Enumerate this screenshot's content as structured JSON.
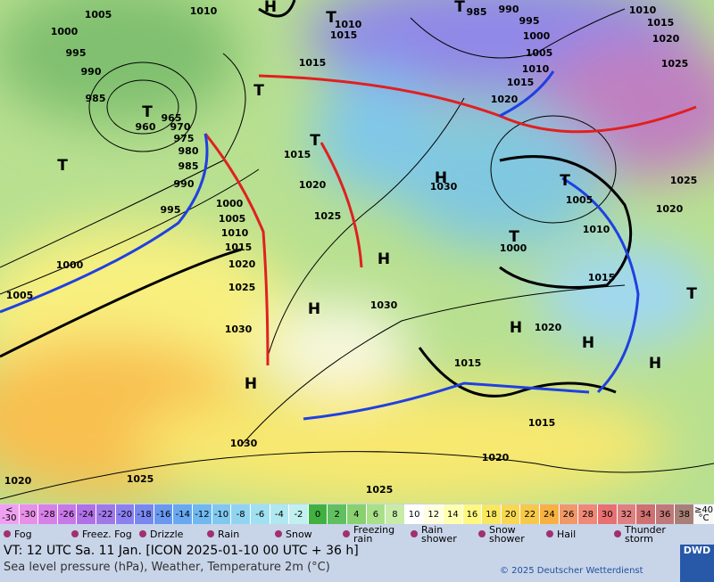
{
  "map": {
    "isobar_labels": [
      1005,
      1010,
      1000,
      995,
      990,
      985,
      965,
      960,
      970,
      975,
      980,
      985,
      990,
      995,
      1000,
      1005,
      1010,
      1015,
      1020,
      1025,
      1030,
      1015,
      1020,
      1025,
      1015,
      1015,
      1010,
      985,
      990,
      995,
      1000,
      1005,
      1010,
      1015,
      1020,
      1010,
      1015,
      1020,
      1025,
      1030,
      1005,
      1010,
      1000,
      1015,
      1020,
      1015,
      1015,
      1025,
      1020,
      1030,
      1000,
      1005,
      1030,
      1020,
      1020,
      1025,
      1025
    ],
    "centers": [
      "T",
      "T",
      "T",
      "T",
      "T",
      "T",
      "T",
      "T",
      "T",
      "H",
      "H",
      "H",
      "H",
      "H",
      "H",
      "H",
      "H"
    ]
  },
  "legend": {
    "scale_low": [
      "<",
      "-30"
    ],
    "scale": [
      {
        "value": -30,
        "color": "#e890e8"
      },
      {
        "value": -28,
        "color": "#d880e8"
      },
      {
        "value": -26,
        "color": "#c878e8"
      },
      {
        "value": -24,
        "color": "#b070e8"
      },
      {
        "value": -22,
        "color": "#a078e8"
      },
      {
        "value": -20,
        "color": "#8c80f0"
      },
      {
        "value": -18,
        "color": "#7888f0"
      },
      {
        "value": -16,
        "color": "#6898f0"
      },
      {
        "value": -14,
        "color": "#68a8f0"
      },
      {
        "value": -12,
        "color": "#70b8f0"
      },
      {
        "value": -10,
        "color": "#80c8f0"
      },
      {
        "value": -8,
        "color": "#90d4f0"
      },
      {
        "value": -6,
        "color": "#a0e0f0"
      },
      {
        "value": -4,
        "color": "#b0e8f0"
      },
      {
        "value": -2,
        "color": "#c0f0f0"
      },
      {
        "value": 0,
        "color": "#40b040"
      },
      {
        "value": 2,
        "color": "#60c060"
      },
      {
        "value": 4,
        "color": "#88d070"
      },
      {
        "value": 6,
        "color": "#a8e088"
      },
      {
        "value": 8,
        "color": "#c8eca8"
      },
      {
        "value": 10,
        "color": "#ffffff"
      },
      {
        "value": 12,
        "color": "#ffffe0"
      },
      {
        "value": 14,
        "color": "#ffffb0"
      },
      {
        "value": 16,
        "color": "#fff880"
      },
      {
        "value": 18,
        "color": "#f8e860"
      },
      {
        "value": 20,
        "color": "#f8d850"
      },
      {
        "value": 22,
        "color": "#f8c848"
      },
      {
        "value": 24,
        "color": "#f8b040"
      },
      {
        "value": 26,
        "color": "#f09868"
      },
      {
        "value": 28,
        "color": "#f08878"
      },
      {
        "value": 30,
        "color": "#e87070"
      },
      {
        "value": 32,
        "color": "#e08080"
      },
      {
        "value": 34,
        "color": "#d07070"
      },
      {
        "value": 36,
        "color": "#c07878"
      },
      {
        "value": 38,
        "color": "#a88078"
      }
    ],
    "scale_high": [
      "≥40",
      "°C"
    ],
    "weather": [
      "Fog",
      "Freez. Fog",
      "Drizzle",
      "Rain",
      "Snow",
      "Freezing rain",
      "Rain shower",
      "Snow shower",
      "Hail",
      "Thunder storm"
    ]
  },
  "footer": {
    "valid_time": "VT: 12 UTC Sa.  11 Jan. [ICON 2025-01-10  00 UTC + 36 h]",
    "description": "Sea level pressure (hPa), Weather, Temperature 2m (°C)",
    "copyright": "© 2025 Deutscher Wetterdienst",
    "logo": "DWD"
  }
}
